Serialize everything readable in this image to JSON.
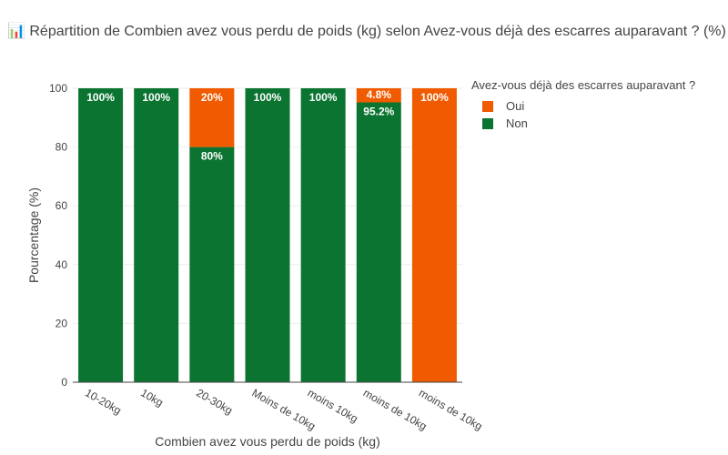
{
  "title": "📊 Répartition de Combien avez vous perdu de poids (kg) selon Avez-vous déjà des escarres auparavant ? (%)",
  "colors": {
    "Oui": "#f05a00",
    "Non": "#0b7431",
    "grid": "#eeeeee",
    "axis": "#444444"
  },
  "legend": {
    "title": "Avez-vous déjà des escarres auparavant ?",
    "items": [
      "Oui",
      "Non"
    ]
  },
  "chart_data": {
    "type": "bar",
    "stacked": true,
    "title": "📊 Répartition de Combien avez vous perdu de poids (kg) selon Avez-vous déjà des escarres auparavant ? (%)",
    "xlabel": "Combien avez vous perdu de poids (kg)",
    "ylabel": "Pourcentage (%)",
    "ylim": [
      0,
      100
    ],
    "yticks": [
      0,
      20,
      40,
      60,
      80,
      100
    ],
    "grid": true,
    "legend_position": "top-right",
    "categories": [
      "10-20kg",
      "10kg",
      "20-30kg",
      "Moins de 10kg",
      "moins 10kg",
      "moins de 10kg",
      "moins de 10kg"
    ],
    "series": [
      {
        "name": "Non",
        "values": [
          100,
          100,
          80,
          100,
          100,
          95.2,
          0
        ],
        "labels": [
          "100%",
          "100%",
          "80%",
          "100%",
          "100%",
          "95.2%",
          ""
        ]
      },
      {
        "name": "Oui",
        "values": [
          0,
          0,
          20,
          0,
          0,
          4.8,
          100
        ],
        "labels": [
          "",
          "",
          "20%",
          "",
          "",
          "4.8%",
          "100%"
        ]
      }
    ]
  }
}
